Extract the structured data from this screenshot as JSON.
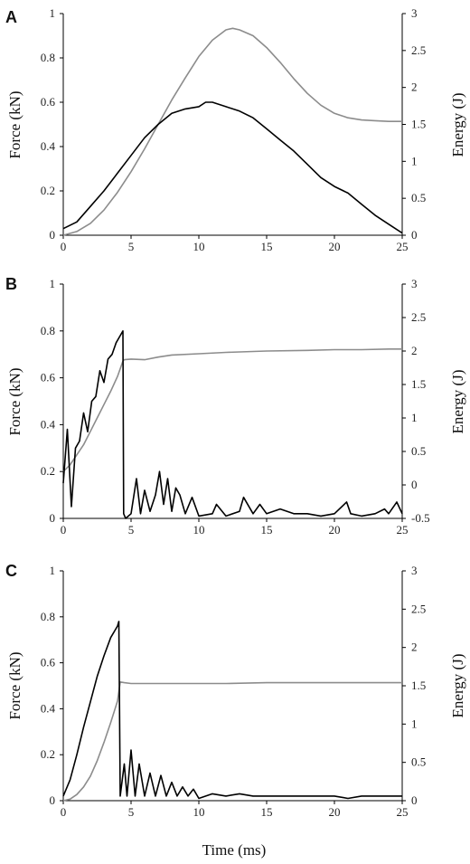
{
  "x_axis_title": "Time (ms)",
  "colors": {
    "force": "#000000",
    "energy": "#8c8c8c",
    "axis": "#000000"
  },
  "chart_data": [
    {
      "type": "line",
      "panel_label": "A",
      "xlabel": "",
      "ylabel": "Force (kN)",
      "y2label": "Energy (J)",
      "xlim": [
        0,
        25
      ],
      "ylim": [
        0,
        1
      ],
      "y2lim": [
        0,
        3
      ],
      "x_ticks": [
        0,
        5,
        10,
        15,
        20,
        25
      ],
      "y_ticks": [
        0,
        0.2,
        0.4,
        0.6,
        0.8,
        1
      ],
      "y2_ticks": [
        0,
        0.5,
        1,
        1.5,
        2,
        2.5,
        3
      ],
      "grid": false,
      "series": [
        {
          "axis": "left",
          "x": [
            0,
            1,
            2,
            3,
            4,
            5,
            6,
            7,
            8,
            9,
            10,
            10.5,
            11,
            12,
            13,
            14,
            15,
            16,
            17,
            18,
            19,
            20,
            21,
            22,
            23,
            24,
            25
          ],
          "y": [
            0.03,
            0.06,
            0.13,
            0.2,
            0.28,
            0.36,
            0.44,
            0.5,
            0.55,
            0.57,
            0.58,
            0.6,
            0.6,
            0.58,
            0.56,
            0.53,
            0.48,
            0.43,
            0.38,
            0.32,
            0.26,
            0.22,
            0.19,
            0.14,
            0.09,
            0.05,
            0.01
          ]
        },
        {
          "axis": "right",
          "x": [
            0,
            1,
            2,
            3,
            4,
            5,
            6,
            7,
            8,
            9,
            10,
            11,
            12,
            12.5,
            13,
            14,
            15,
            16,
            17,
            18,
            19,
            20,
            21,
            22,
            23,
            24,
            25
          ],
          "y": [
            0,
            0.05,
            0.16,
            0.34,
            0.58,
            0.86,
            1.17,
            1.5,
            1.83,
            2.13,
            2.42,
            2.64,
            2.78,
            2.8,
            2.78,
            2.7,
            2.54,
            2.34,
            2.12,
            1.92,
            1.76,
            1.65,
            1.59,
            1.56,
            1.55,
            1.54,
            1.54
          ]
        }
      ]
    },
    {
      "type": "line",
      "panel_label": "B",
      "xlabel": "",
      "ylabel": "Force (kN)",
      "y2label": "Energy (J)",
      "xlim": [
        0,
        25
      ],
      "ylim": [
        0,
        1
      ],
      "y2lim": [
        -0.5,
        3
      ],
      "x_ticks": [
        0,
        5,
        10,
        15,
        20,
        25
      ],
      "y_ticks": [
        0,
        0.2,
        0.4,
        0.6,
        0.8,
        1
      ],
      "y2_ticks": [
        -0.5,
        0,
        0.5,
        1,
        1.5,
        2,
        2.5,
        3
      ],
      "grid": false,
      "series": [
        {
          "axis": "left",
          "x": [
            0,
            0.3,
            0.6,
            0.9,
            1.2,
            1.5,
            1.8,
            2.1,
            2.4,
            2.7,
            3,
            3.3,
            3.6,
            3.9,
            4.2,
            4.4,
            4.45,
            4.6,
            5,
            5.4,
            5.7,
            6,
            6.4,
            6.8,
            7.1,
            7.4,
            7.7,
            8,
            8.3,
            8.6,
            9,
            9.5,
            10,
            11,
            11.3,
            12,
            13,
            13.3,
            14,
            14.5,
            15,
            16,
            17,
            18,
            19,
            20,
            20.9,
            21.2,
            22,
            23,
            23.7,
            24,
            24.6,
            25
          ],
          "y": [
            0.15,
            0.38,
            0.05,
            0.3,
            0.33,
            0.45,
            0.37,
            0.5,
            0.52,
            0.63,
            0.58,
            0.68,
            0.7,
            0.75,
            0.78,
            0.8,
            0.02,
            0,
            0.02,
            0.17,
            0.02,
            0.12,
            0.03,
            0.1,
            0.2,
            0.06,
            0.17,
            0.03,
            0.13,
            0.1,
            0.02,
            0.09,
            0.01,
            0.02,
            0.06,
            0.01,
            0.03,
            0.09,
            0.02,
            0.06,
            0.02,
            0.04,
            0.02,
            0.02,
            0.01,
            0.02,
            0.07,
            0.02,
            0.01,
            0.02,
            0.04,
            0.02,
            0.07,
            0.02
          ]
        },
        {
          "axis": "right",
          "x": [
            0,
            0.5,
            1,
            1.5,
            2,
            2.5,
            3,
            3.5,
            4,
            4.4,
            4.5,
            5,
            6,
            7,
            8,
            10,
            12,
            15,
            18,
            20,
            22,
            24,
            25
          ],
          "y": [
            0.2,
            0.3,
            0.45,
            0.6,
            0.8,
            1.0,
            1.2,
            1.4,
            1.62,
            1.85,
            1.87,
            1.88,
            1.87,
            1.91,
            1.94,
            1.96,
            1.98,
            2.0,
            2.01,
            2.02,
            2.02,
            2.03,
            2.03
          ]
        }
      ]
    },
    {
      "type": "line",
      "panel_label": "C",
      "xlabel": "Time (ms)",
      "ylabel": "Force (kN)",
      "y2label": "Energy (J)",
      "xlim": [
        0,
        25
      ],
      "ylim": [
        0,
        1
      ],
      "y2lim": [
        0,
        3
      ],
      "x_ticks": [
        0,
        5,
        10,
        15,
        20,
        25
      ],
      "y_ticks": [
        0,
        0.2,
        0.4,
        0.6,
        0.8,
        1
      ],
      "y2_ticks": [
        0,
        0.5,
        1,
        1.5,
        2,
        2.5,
        3
      ],
      "grid": false,
      "series": [
        {
          "axis": "left",
          "x": [
            0,
            0.5,
            1,
            1.5,
            2,
            2.5,
            3,
            3.5,
            4,
            4.1,
            4.2,
            4.5,
            4.7,
            5,
            5.3,
            5.6,
            6,
            6.4,
            6.8,
            7.2,
            7.6,
            8,
            8.4,
            8.8,
            9.2,
            9.6,
            10,
            11,
            12,
            13,
            14,
            15,
            16,
            17,
            18,
            19,
            20,
            21,
            22,
            23,
            24,
            25
          ],
          "y": [
            0.02,
            0.09,
            0.2,
            0.32,
            0.43,
            0.54,
            0.63,
            0.71,
            0.76,
            0.78,
            0.02,
            0.16,
            0.02,
            0.22,
            0.02,
            0.16,
            0.02,
            0.12,
            0.02,
            0.11,
            0.02,
            0.08,
            0.02,
            0.06,
            0.02,
            0.05,
            0.01,
            0.03,
            0.02,
            0.03,
            0.02,
            0.02,
            0.02,
            0.02,
            0.02,
            0.02,
            0.02,
            0.01,
            0.02,
            0.02,
            0.02,
            0.02
          ]
        },
        {
          "axis": "right",
          "x": [
            0,
            0.5,
            1,
            1.5,
            2,
            2.5,
            3,
            3.5,
            4,
            4.2,
            4.5,
            5,
            6,
            8,
            10,
            12,
            15,
            18,
            20,
            22,
            25
          ],
          "y": [
            0,
            0.02,
            0.08,
            0.18,
            0.32,
            0.52,
            0.76,
            1.02,
            1.3,
            1.55,
            1.54,
            1.53,
            1.53,
            1.53,
            1.53,
            1.53,
            1.54,
            1.54,
            1.54,
            1.54,
            1.54
          ]
        }
      ]
    }
  ]
}
